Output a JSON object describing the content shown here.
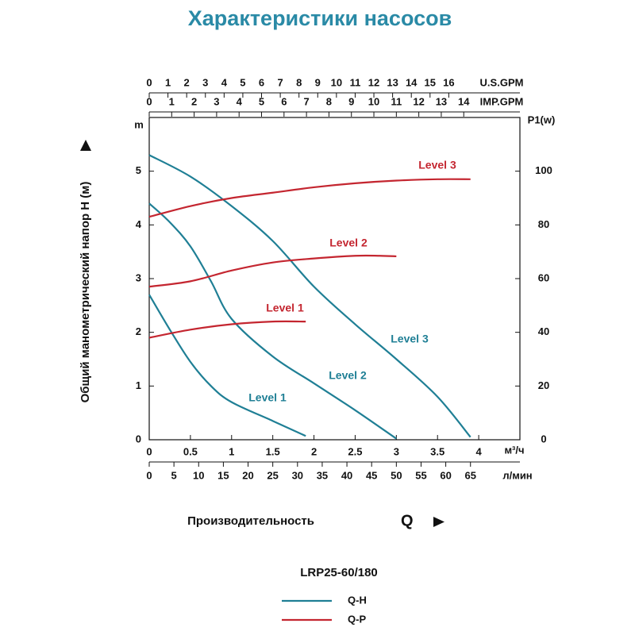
{
  "chart_data": {
    "type": "line",
    "title": "Характеристики насосов",
    "model": "LRP25-60/180",
    "x_label": "Производительность",
    "x_symbol": "Q",
    "y_label": "Общий манометрический напор H (м)",
    "y_unit": "m",
    "y2_label": "P1(w)",
    "ylim": [
      0,
      6
    ],
    "yticks": [
      0,
      1,
      2,
      3,
      4,
      5
    ],
    "y2lim": [
      0,
      120
    ],
    "y2ticks": [
      0,
      20,
      40,
      60,
      80,
      100
    ],
    "x_axes": [
      {
        "label": "м³/ч",
        "xlim": [
          0,
          4.5
        ],
        "xticks": [
          0,
          0.5,
          1,
          1.5,
          2,
          2.5,
          3,
          3.5,
          4
        ]
      },
      {
        "label": "л/мин",
        "xlim": [
          0,
          75
        ],
        "xticks": [
          0,
          5,
          10,
          15,
          20,
          25,
          30,
          35,
          40,
          45,
          50,
          55,
          60,
          65
        ]
      },
      {
        "label": "U.S.GPM",
        "xlim": [
          0,
          19.8
        ],
        "xticks": [
          0,
          1,
          2,
          3,
          4,
          5,
          6,
          7,
          8,
          9,
          10,
          11,
          12,
          13,
          14,
          15,
          16
        ]
      },
      {
        "label": "IMP.GPM",
        "xlim": [
          0,
          16.5
        ],
        "xticks": [
          0,
          1,
          2,
          3,
          4,
          5,
          6,
          7,
          8,
          9,
          10,
          11,
          12,
          13,
          14
        ]
      }
    ],
    "groups": [
      {
        "name": "Q-H",
        "color": "#1f7f95",
        "axis": "y",
        "series": [
          {
            "name": "Level 1",
            "x": [
              0,
              0.25,
              0.5,
              0.75,
              1,
              1.5,
              1.9
            ],
            "values": [
              2.7,
              2.05,
              1.45,
              1.0,
              0.7,
              0.35,
              0.07
            ]
          },
          {
            "name": "Level 2",
            "x": [
              0,
              0.25,
              0.5,
              0.75,
              1,
              1.5,
              2,
              2.5,
              3
            ],
            "values": [
              4.4,
              4.05,
              3.6,
              2.95,
              2.25,
              1.55,
              1.05,
              0.55,
              0.02
            ]
          },
          {
            "name": "Level 3",
            "x": [
              0,
              0.5,
              1,
              1.5,
              2,
              2.5,
              3,
              3.5,
              3.9
            ],
            "values": [
              5.3,
              4.9,
              4.35,
              3.7,
              2.85,
              2.15,
              1.5,
              0.8,
              0.05
            ]
          }
        ]
      },
      {
        "name": "Q-P",
        "color": "#c42630",
        "axis": "y2",
        "series": [
          {
            "name": "Level 1",
            "x": [
              0,
              0.5,
              1,
              1.5,
              1.9
            ],
            "values": [
              38,
              41,
              43,
              44,
              44
            ]
          },
          {
            "name": "Level 2",
            "x": [
              0,
              0.5,
              1,
              1.5,
              2,
              2.5,
              2.8,
              3
            ],
            "values": [
              57,
              59,
              63,
              66,
              67.5,
              68.5,
              68.5,
              68.3
            ]
          },
          {
            "name": "Level 3",
            "x": [
              0,
              0.5,
              1,
              1.5,
              2,
              2.5,
              3,
              3.5,
              3.9
            ],
            "values": [
              83,
              87,
              90,
              92,
              94,
              95.5,
              96.5,
              97,
              97
            ]
          }
        ]
      }
    ]
  }
}
